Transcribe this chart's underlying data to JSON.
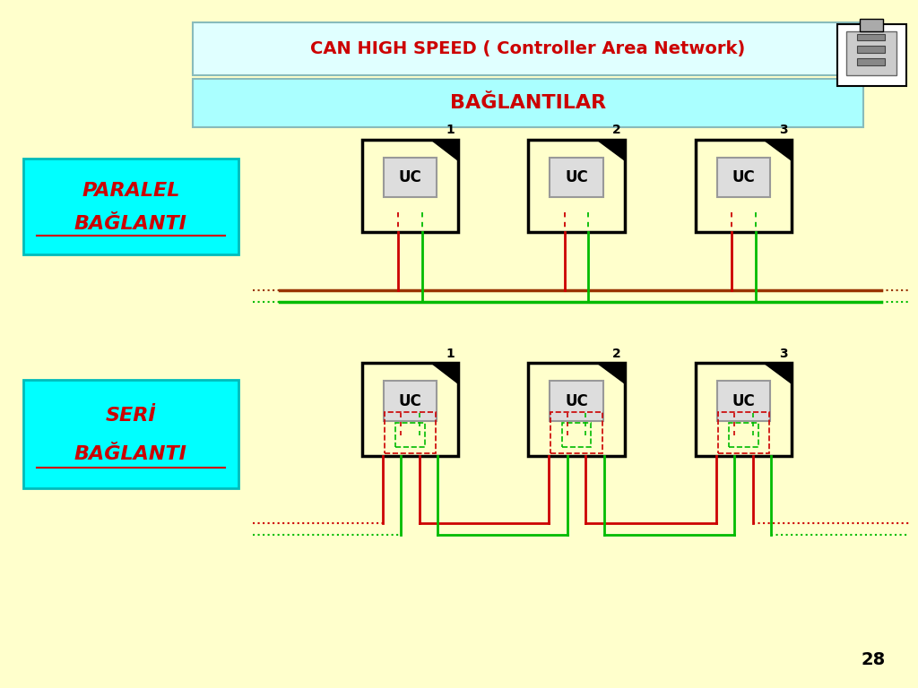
{
  "bg_color": "#FFFFCC",
  "title1": "CAN HIGH SPEED ( Controller Area Network)",
  "title2": "BAĞLANTILAR",
  "title_color": "#CC0000",
  "title1_bg": "#E0FFFF",
  "title2_bg": "#AAFFFF",
  "label_paralel_line1": "PARALEL",
  "label_paralel_line2": "BAĞLANTI",
  "label_seri_line1": "SERİ",
  "label_seri_line2": "BAĞLANTI",
  "label_box_bg": "#00FFFF",
  "label_text_color": "#CC0000",
  "red_color": "#CC0000",
  "green_color": "#00BB00",
  "brown_color": "#993300",
  "page_num": "28",
  "uc_label": "UC"
}
